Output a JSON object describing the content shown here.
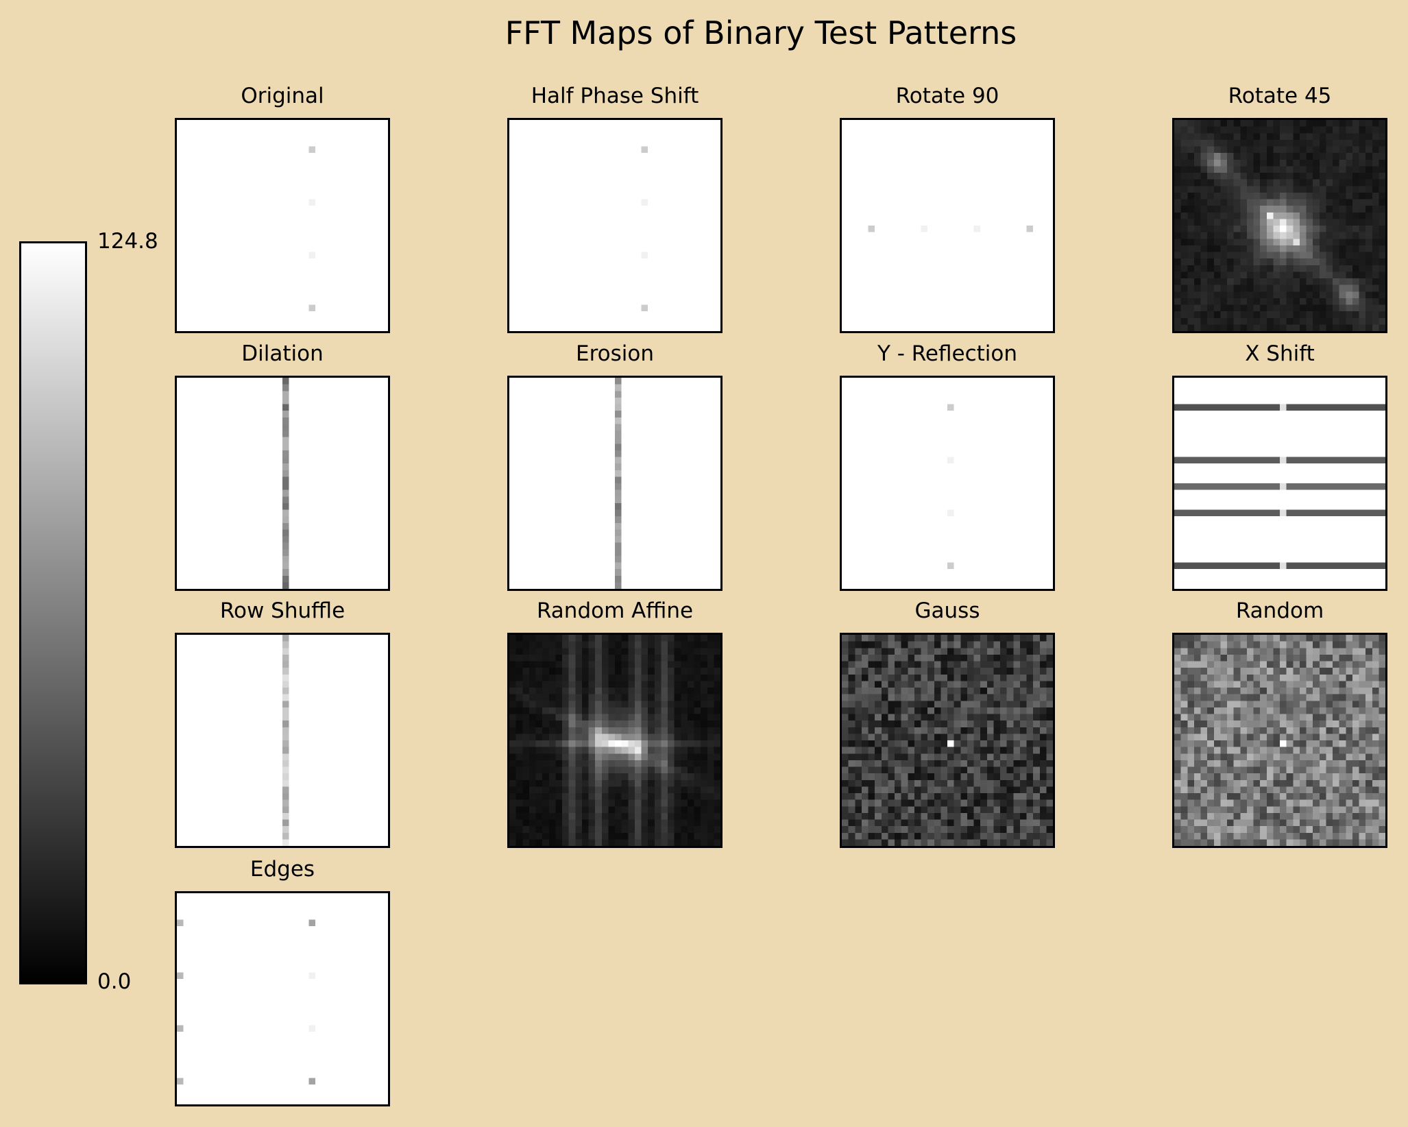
{
  "chart_data": {
    "type": "heatmap",
    "title": "FFT Maps of Binary Test Patterns",
    "colormap": "gray",
    "grid": false,
    "colorbar": {
      "min": 0.0,
      "max": 124.8,
      "min_label": "0.0",
      "max_label": "124.8",
      "placement": "left"
    },
    "panels": [
      {
        "title": "Original",
        "pattern": "vertical-dots",
        "base": 124.8,
        "dots": [
          [
            4,
            20,
            100
          ],
          [
            12,
            20,
            118
          ],
          [
            20,
            20,
            118
          ],
          [
            28,
            20,
            100
          ]
        ]
      },
      {
        "title": "Half Phase Shift",
        "pattern": "vertical-dots",
        "base": 124.8,
        "dots": [
          [
            4,
            20,
            100
          ],
          [
            12,
            20,
            118
          ],
          [
            20,
            20,
            118
          ],
          [
            28,
            20,
            100
          ]
        ]
      },
      {
        "title": "Rotate 90",
        "pattern": "horizontal-dots",
        "base": 124.8,
        "dots": [
          [
            16,
            4,
            100
          ],
          [
            16,
            12,
            118
          ],
          [
            16,
            20,
            118
          ],
          [
            16,
            28,
            100
          ]
        ]
      },
      {
        "title": "Rotate 45",
        "pattern": "diagonal-spectrum",
        "base": 8,
        "peak": 124.8
      },
      {
        "title": "Dilation",
        "pattern": "vertical-line",
        "base": 124.8,
        "line_value": 70
      },
      {
        "title": "Erosion",
        "pattern": "vertical-line",
        "base": 124.8,
        "line_value": 75
      },
      {
        "title": "Y - Reflection",
        "pattern": "vertical-dots",
        "base": 124.8,
        "dots": [
          [
            4,
            16,
            100
          ],
          [
            12,
            16,
            118
          ],
          [
            20,
            16,
            118
          ],
          [
            28,
            16,
            100
          ]
        ]
      },
      {
        "title": "X Shift",
        "pattern": "horizontal-lines",
        "base": 124.8,
        "lines": [
          [
            4,
            40
          ],
          [
            12,
            45
          ],
          [
            16,
            52
          ],
          [
            20,
            45
          ],
          [
            28,
            40
          ]
        ]
      },
      {
        "title": "Row Shuffle",
        "pattern": "vertical-line",
        "base": 124.8,
        "line_value": 95
      },
      {
        "title": "Random Affine",
        "pattern": "cross-spectrum",
        "base": 5,
        "peak": 124.8
      },
      {
        "title": "Gauss",
        "pattern": "noise",
        "base": 30,
        "spread": 22,
        "peak": 124.8
      },
      {
        "title": "Random",
        "pattern": "noise",
        "base": 60,
        "spread": 28,
        "peak": 124.8
      },
      {
        "title": "Edges",
        "pattern": "edge-dots",
        "base": 124.8,
        "dots": [
          [
            4,
            20,
            80
          ],
          [
            12,
            20,
            118
          ],
          [
            20,
            20,
            118
          ],
          [
            28,
            20,
            80
          ],
          [
            4,
            0,
            90
          ],
          [
            12,
            0,
            90
          ],
          [
            20,
            0,
            90
          ],
          [
            28,
            0,
            90
          ]
        ]
      }
    ]
  }
}
